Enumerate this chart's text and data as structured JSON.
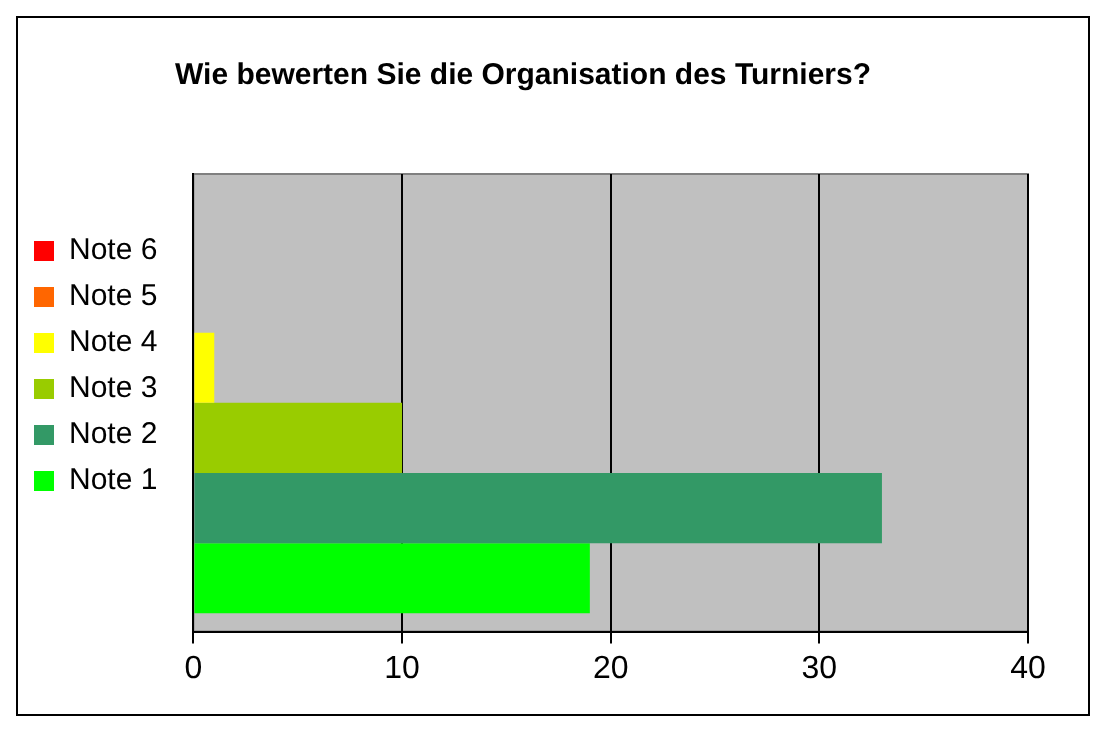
{
  "chart_data": {
    "type": "bar",
    "orientation": "horizontal",
    "title": "Wie bewerten Sie die Organisation des Turniers?",
    "categories": [
      null
    ],
    "series": [
      {
        "name": "Note 1",
        "color": "#00ff00",
        "values": [
          19
        ]
      },
      {
        "name": "Note 2",
        "color": "#339966",
        "values": [
          33
        ]
      },
      {
        "name": "Note 3",
        "color": "#99cc00",
        "values": [
          10
        ]
      },
      {
        "name": "Note 4",
        "color": "#ffff00",
        "values": [
          1
        ]
      },
      {
        "name": "Note 5",
        "color": "#ff6600",
        "values": [
          0
        ]
      },
      {
        "name": "Note 6",
        "color": "#ff0000",
        "values": [
          0
        ]
      }
    ],
    "xlim": [
      0,
      40
    ],
    "xticks": [
      0,
      10,
      20,
      30,
      40
    ],
    "grid": "x",
    "legend": "left"
  }
}
